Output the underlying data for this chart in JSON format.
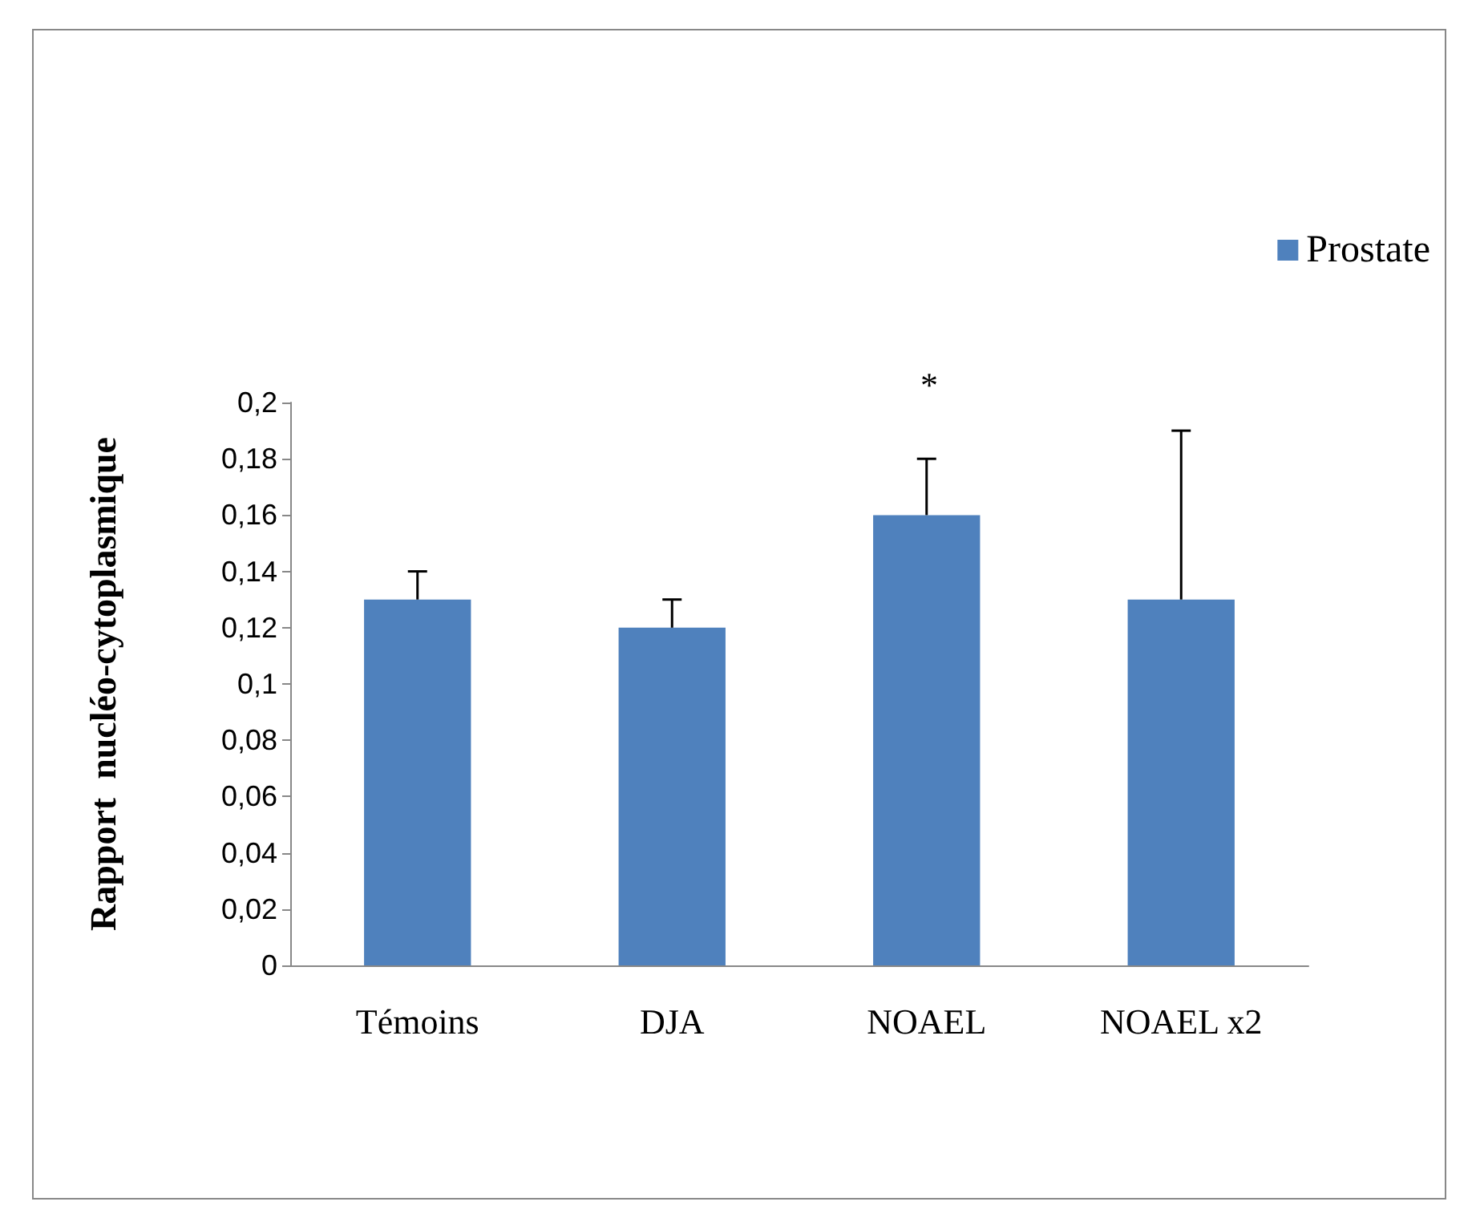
{
  "chart_data": {
    "type": "bar",
    "ylabel": "Rapport  nucléo-cytoplasmique",
    "categories": [
      "Témoins",
      "DJA",
      "NOAEL",
      "NOAEL x2"
    ],
    "series": [
      {
        "name": "Prostate",
        "color": "#4f81bd",
        "values": [
          0.13,
          0.12,
          0.16,
          0.13
        ],
        "errors": [
          [
            0.13,
            0.14
          ],
          [
            0.12,
            0.13
          ],
          [
            0.16,
            0.18
          ],
          [
            0.13,
            0.19
          ]
        ]
      }
    ],
    "ylim": [
      0,
      0.2
    ],
    "yticks": [
      {
        "value": 0,
        "label": "0"
      },
      {
        "value": 0.02,
        "label": "0,02"
      },
      {
        "value": 0.04,
        "label": "0,04"
      },
      {
        "value": 0.06,
        "label": "0,06"
      },
      {
        "value": 0.08,
        "label": "0,08"
      },
      {
        "value": 0.1,
        "label": "0,1"
      },
      {
        "value": 0.12,
        "label": "0,12"
      },
      {
        "value": 0.14,
        "label": "0,14"
      },
      {
        "value": 0.16,
        "label": "0,16"
      },
      {
        "value": 0.18,
        "label": "0,18"
      },
      {
        "value": 0.2,
        "label": "0,2"
      }
    ],
    "annotations": [
      "*"
    ],
    "grid": false,
    "legend": "top right"
  }
}
